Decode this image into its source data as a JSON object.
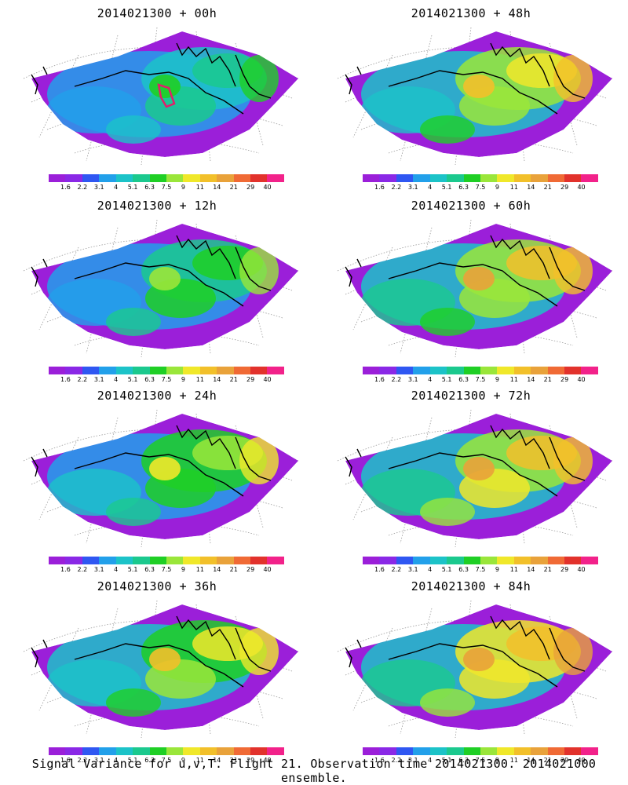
{
  "footer": "Signal Variance for u,v,T. Flight 21. Observation time 2014021300. 2014021000 ensemble.",
  "colorbar": {
    "colors": [
      "#9b1fd9",
      "#8a28e6",
      "#2f57f2",
      "#22a0ea",
      "#1cc3c8",
      "#1bc98e",
      "#1fcf25",
      "#9ae63a",
      "#f0e82a",
      "#f2c02a",
      "#e9a23a",
      "#f06a35",
      "#e2322c",
      "#f2228a"
    ],
    "labels": [
      "1.6",
      "2.2",
      "3.1",
      "4",
      "5.1",
      "6.3",
      "7.5",
      "9",
      "11",
      "14",
      "21",
      "29",
      "40"
    ]
  },
  "panels": [
    {
      "title": "2014021300 + 00h",
      "intensity": 0.2,
      "marker": true
    },
    {
      "title": "2014021300 + 48h",
      "intensity": 0.62,
      "marker": false
    },
    {
      "title": "2014021300 + 12h",
      "intensity": 0.33,
      "marker": false
    },
    {
      "title": "2014021300 + 60h",
      "intensity": 0.68,
      "marker": false
    },
    {
      "title": "2014021300 + 24h",
      "intensity": 0.45,
      "marker": false
    },
    {
      "title": "2014021300 + 72h",
      "intensity": 0.73,
      "marker": false
    },
    {
      "title": "2014021300 + 36h",
      "intensity": 0.55,
      "marker": false
    },
    {
      "title": "2014021300 + 84h",
      "intensity": 0.76,
      "marker": false
    }
  ]
}
